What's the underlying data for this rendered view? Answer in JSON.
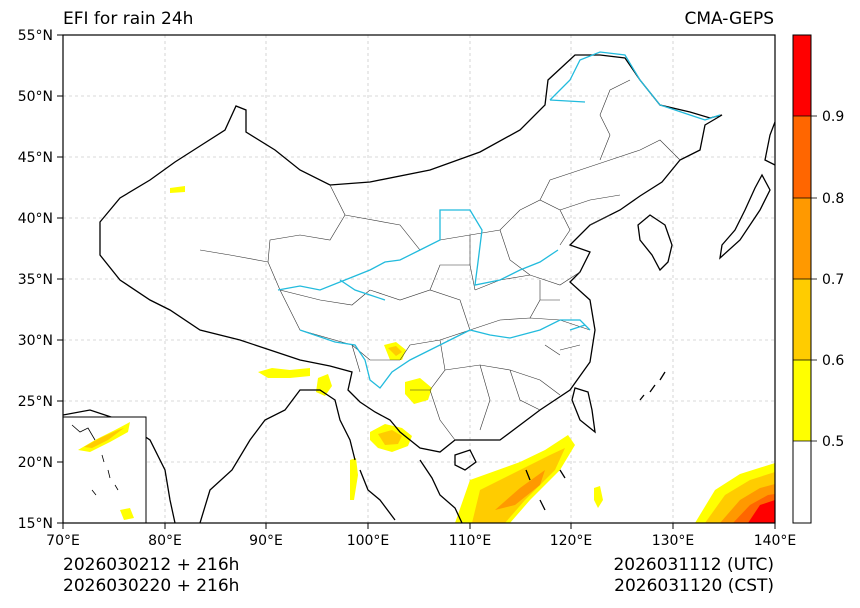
{
  "title": {
    "left": "EFI for rain 24h",
    "right": "CMA-GEPS"
  },
  "footer": {
    "left_line1": "2026030212 + 216h",
    "left_line2": "2026030220 + 216h",
    "right_line1": "2026031112 (UTC)",
    "right_line2": "2026031120 (CST)"
  },
  "axes": {
    "lat_labels": [
      "55°N",
      "50°N",
      "45°N",
      "40°N",
      "35°N",
      "30°N",
      "25°N",
      "20°N",
      "15°N"
    ],
    "lon_labels": [
      "70°E",
      "80°E",
      "90°E",
      "100°E",
      "110°E",
      "120°E",
      "130°E",
      "140°E"
    ],
    "lat_range": [
      15,
      55
    ],
    "lon_range": [
      70,
      140
    ]
  },
  "colorbar": {
    "tick_labels": [
      "0.5",
      "0.6",
      "0.7",
      "0.8",
      "0.9"
    ],
    "levels": [
      0.4,
      0.5,
      0.6,
      0.7,
      0.8,
      0.9,
      1.0
    ],
    "colors": [
      "#ffffff",
      "#ffff00",
      "#ffcc00",
      "#ff9900",
      "#ff6600",
      "#ff0000"
    ]
  },
  "colors": {
    "river": "#22bbdd",
    "border": "#000000",
    "grid": "#cccccc"
  }
}
